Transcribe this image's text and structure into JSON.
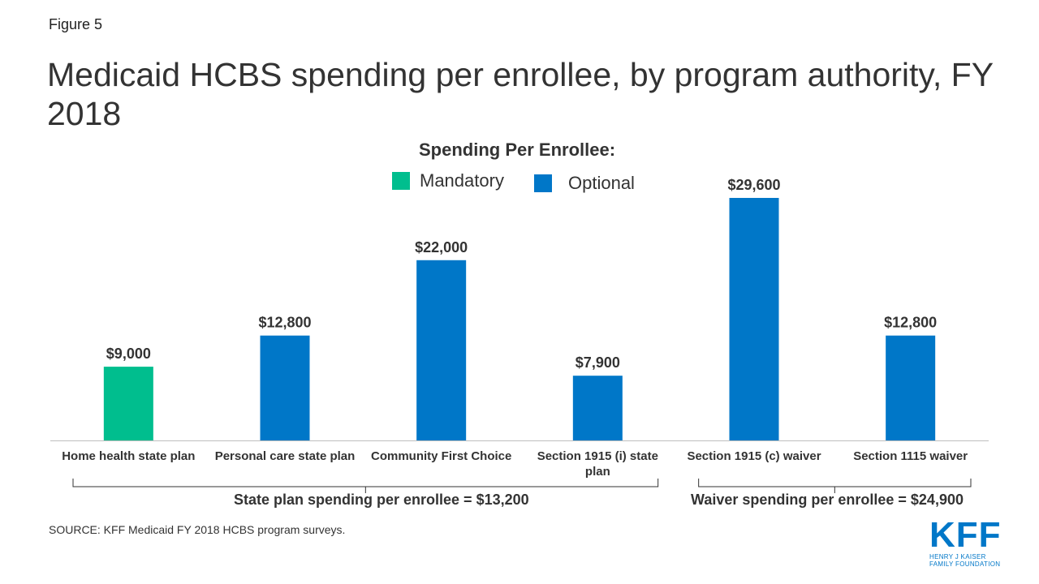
{
  "figure_label": "Figure 5",
  "colors": {
    "mandatory": "#00BE8E",
    "optional": "#0077C8",
    "text": "#333333"
  },
  "chart_data": {
    "type": "bar",
    "title": "Medicaid HCBS spending per enrollee, by program authority, FY 2018",
    "xlabel": "",
    "ylabel": "",
    "ylim": [
      0,
      29600
    ],
    "grid": false,
    "categories": [
      "Home health state plan",
      "Personal care state plan",
      "Community First Choice",
      "Section 1915 (i) state plan",
      "Section 1915 (c) waiver",
      "Section 1115 waiver"
    ],
    "values": [
      9000,
      12800,
      22000,
      7900,
      29600,
      12800
    ],
    "value_labels": [
      "$9,000",
      "$12,800",
      "$22,000",
      "$7,900",
      "$29,600",
      "$12,800"
    ],
    "bar_types": [
      "Mandatory",
      "Optional",
      "Optional",
      "Optional",
      "Optional",
      "Optional"
    ],
    "legend": {
      "title": "Spending Per Enrollee:",
      "items": [
        {
          "label": "Mandatory",
          "color": "#00BE8E"
        },
        {
          "label": "Optional",
          "color": "#0077C8"
        }
      ]
    },
    "groups": [
      {
        "label": "State plan spending per enrollee = $13,200",
        "start": 0,
        "end": 3
      },
      {
        "label": "Waiver spending per enrollee = $24,900",
        "start": 4,
        "end": 5
      }
    ]
  },
  "source": "SOURCE: KFF Medicaid FY 2018 HCBS program surveys.",
  "logo": {
    "name": "KFF",
    "line1": "HENRY J KAISER",
    "line2": "FAMILY FOUNDATION"
  }
}
